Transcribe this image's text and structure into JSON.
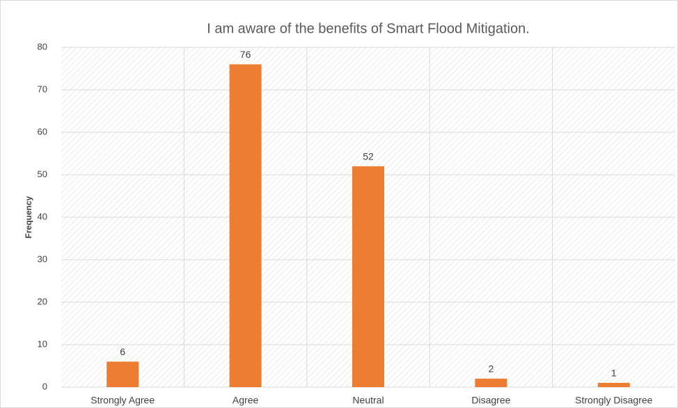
{
  "chart_data": {
    "type": "bar",
    "title": "I am aware of the benefits of Smart Flood Mitigation.",
    "ylabel": "Frequency",
    "categories": [
      "Strongly Agree",
      "Agree",
      "Neutral",
      "Disagree",
      "Strongly Disagree"
    ],
    "values": [
      6,
      76,
      52,
      2,
      1
    ],
    "color": "#ed7d31",
    "ylim": [
      0,
      80
    ],
    "yticks": [
      0,
      10,
      20,
      30,
      40,
      50,
      60,
      70,
      80
    ],
    "grid": true
  }
}
